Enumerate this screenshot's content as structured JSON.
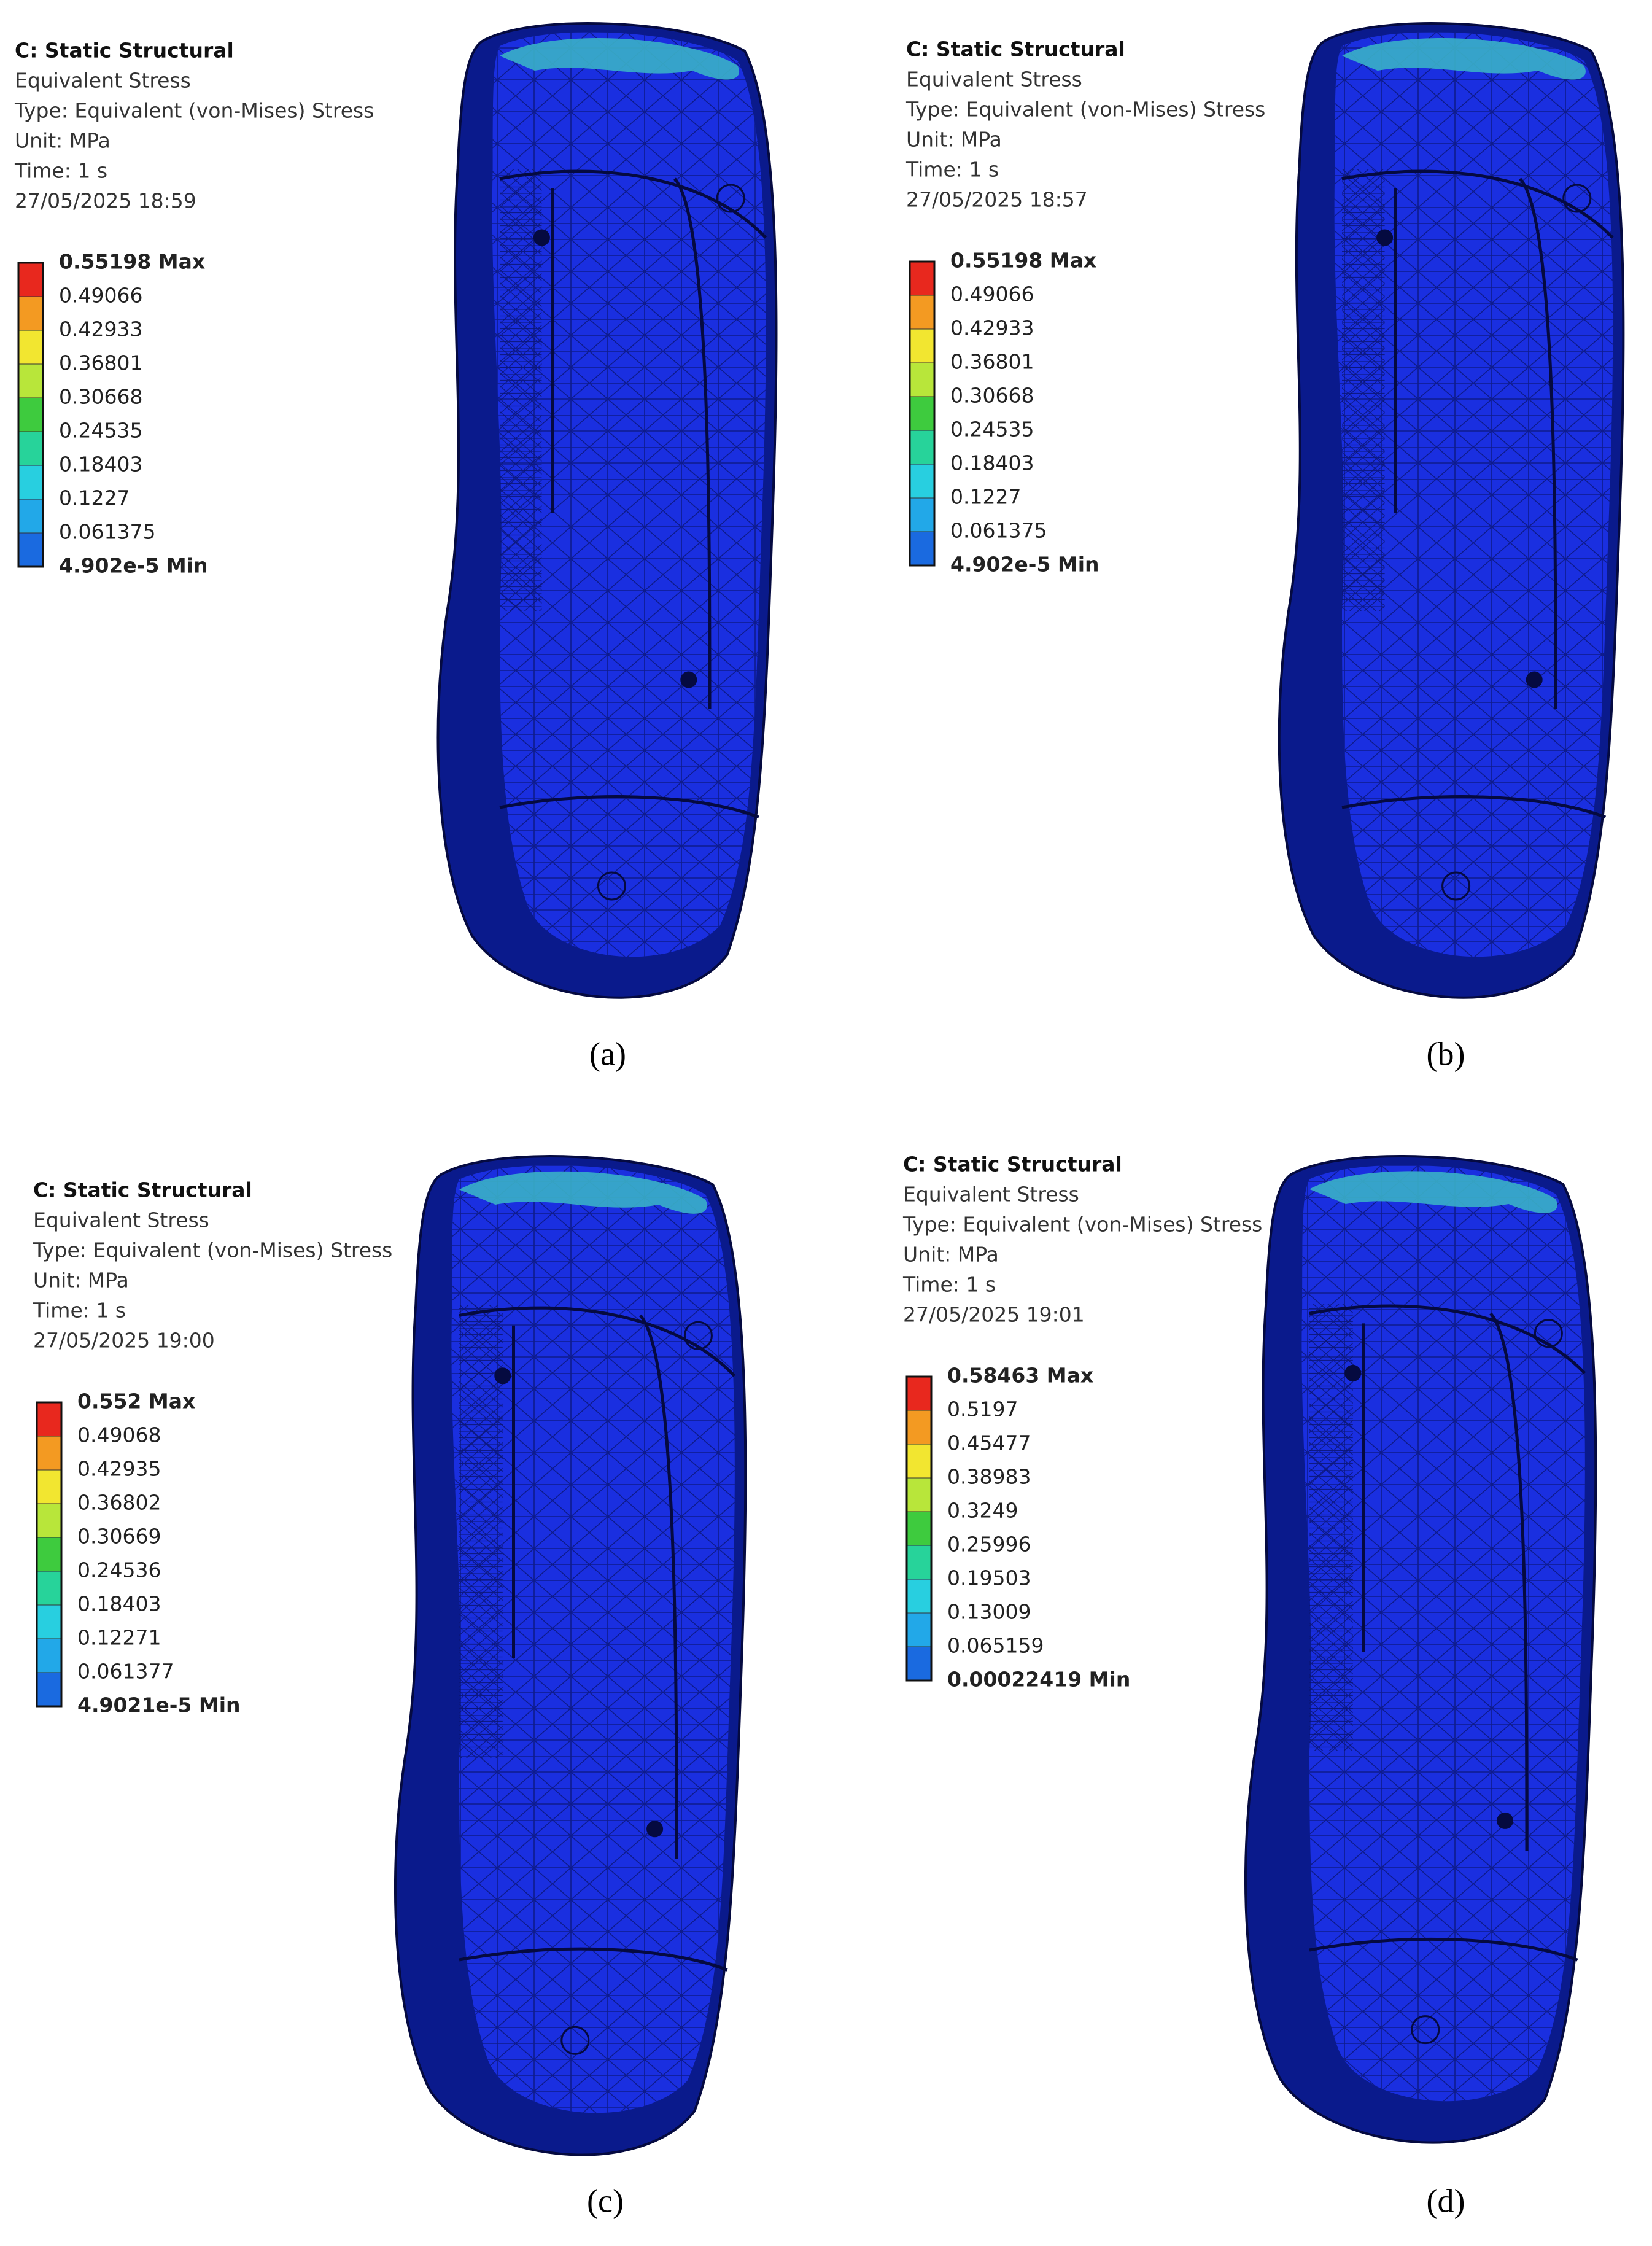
{
  "panels": [
    {
      "header": [
        "C: Static Structural",
        "Equivalent Stress",
        "Type: Equivalent (von-Mises) Stress",
        "Unit: MPa",
        "Time: 1 s",
        "27/05/2025 18:59"
      ],
      "legend": [
        "0.55198 Max",
        "0.49066",
        "0.42933",
        "0.36801",
        "0.30668",
        "0.24535",
        "0.18403",
        "0.1227",
        "0.061375",
        "4.902e-5 Min"
      ],
      "caption": "(a)"
    },
    {
      "header": [
        "C: Static Structural",
        "Equivalent Stress",
        "Type: Equivalent (von-Mises) Stress",
        "Unit: MPa",
        "Time: 1 s",
        "27/05/2025 18:57"
      ],
      "legend": [
        "0.55198 Max",
        "0.49066",
        "0.42933",
        "0.36801",
        "0.30668",
        "0.24535",
        "0.18403",
        "0.1227",
        "0.061375",
        "4.902e-5 Min"
      ],
      "caption": "(b)"
    },
    {
      "header": [
        "C: Static Structural",
        "Equivalent Stress",
        "Type: Equivalent (von-Mises) Stress",
        "Unit: MPa",
        "Time: 1 s",
        "27/05/2025 19:00"
      ],
      "legend": [
        "0.552 Max",
        "0.49068",
        "0.42935",
        "0.36802",
        "0.30669",
        "0.24536",
        "0.18403",
        "0.12271",
        "0.061377",
        "4.9021e-5 Min"
      ],
      "caption": "(c)"
    },
    {
      "header": [
        "C: Static Structural",
        "Equivalent Stress",
        "Type: Equivalent (von-Mises) Stress",
        "Unit: MPa",
        "Time: 1 s",
        "27/05/2025 19:01"
      ],
      "legend": [
        "0.58463 Max",
        "0.5197",
        "0.45477",
        "0.38983",
        "0.3249",
        "0.25996",
        "0.19503",
        "0.13009",
        "0.065159",
        "0.00022419 Min"
      ],
      "caption": "(d)"
    }
  ]
}
